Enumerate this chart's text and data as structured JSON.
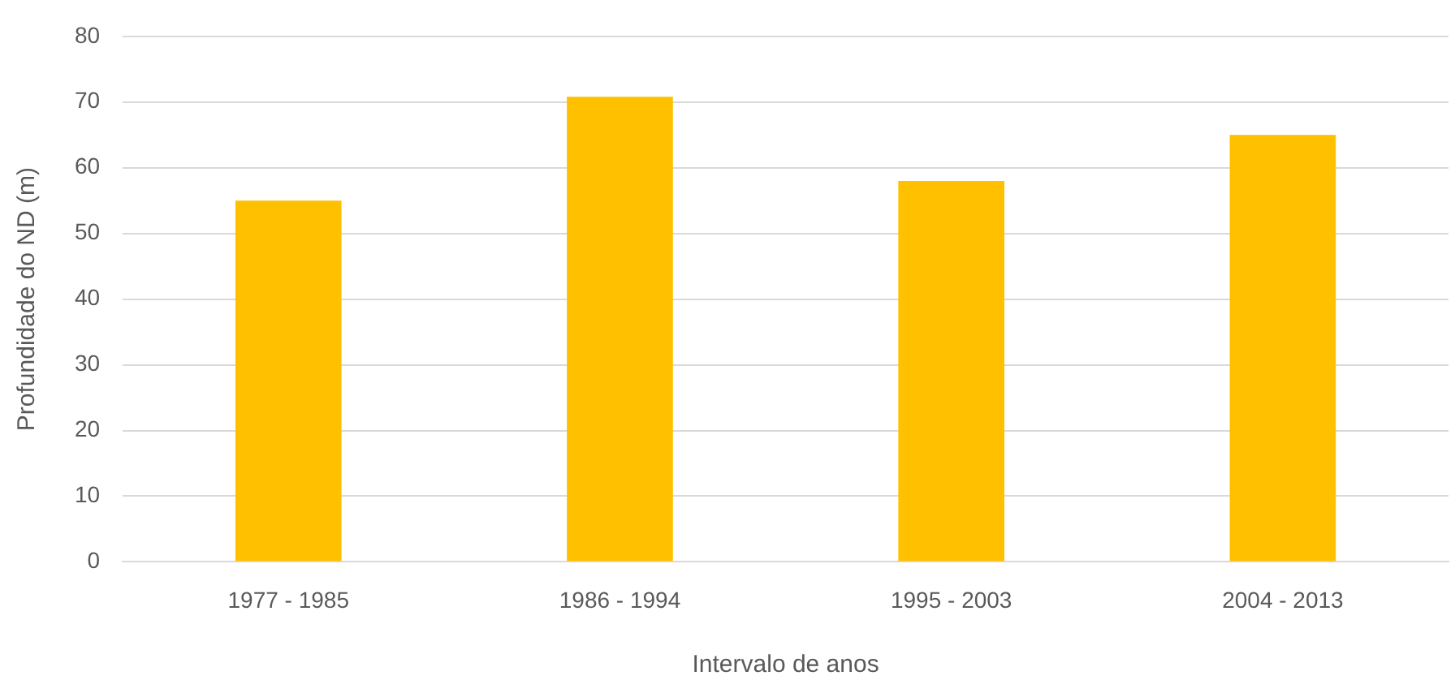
{
  "chart_data": {
    "type": "bar",
    "xlabel": "Intervalo de anos",
    "ylabel": "Profundidade do ND (m)",
    "categories": [
      "1977 - 1985",
      "1986 - 1994",
      "1995 - 2003",
      "2004 - 2013"
    ],
    "values": [
      55,
      70.8,
      58,
      65
    ],
    "color": "#ffc000",
    "ylim": [
      0,
      80
    ],
    "yticks": [
      0,
      10,
      20,
      30,
      40,
      50,
      60,
      70,
      80
    ],
    "grid": "y",
    "legend": false
  }
}
